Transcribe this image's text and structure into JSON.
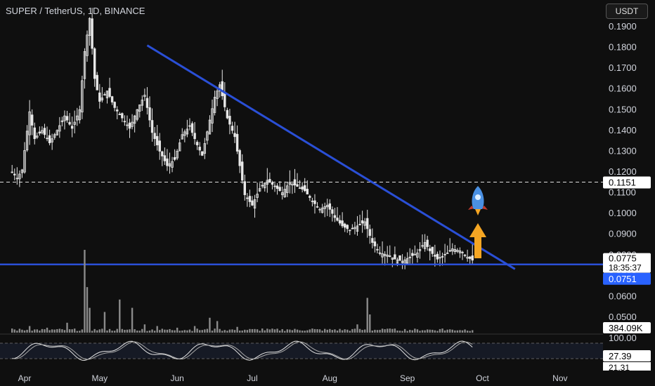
{
  "header": {
    "symbol_title": "SUPER / TetherUS, 1D, BINANCE",
    "currency_button": "USDT"
  },
  "colors": {
    "background": "#0f0f0f",
    "candles": "#e8e8e8",
    "trendline": "#2a4fd6",
    "support": "#2a4fd6",
    "price_tag": "#2962ff",
    "volume": "#8a8a8a",
    "stoch_line": "#e6e6e6"
  },
  "chart_data": {
    "type": "candlestick",
    "pair": "SUPER/USDT",
    "timeframe": "1D",
    "exchange": "BINANCE",
    "y_axis": {
      "ticks": [
        "0.1900",
        "0.1800",
        "0.1700",
        "0.1600",
        "0.1500",
        "0.1400",
        "0.1300",
        "0.1200",
        "0.1100",
        "0.1000",
        "0.0900",
        "0.0800",
        "0.0700",
        "0.0600",
        "0.0500"
      ],
      "range": [
        0.047,
        0.197
      ]
    },
    "x_axis": {
      "ticks": [
        "Apr",
        "May",
        "Jun",
        "Jul",
        "Aug",
        "Sep",
        "Oct",
        "Nov"
      ]
    },
    "price_points": [
      [
        "Mar 27",
        0.12
      ],
      [
        "Mar 29",
        0.117
      ],
      [
        "Mar 31",
        0.121
      ],
      [
        "Apr 3",
        0.149
      ],
      [
        "Apr 5",
        0.136
      ],
      [
        "Apr 8",
        0.14
      ],
      [
        "Apr 11",
        0.134
      ],
      [
        "Apr 14",
        0.14
      ],
      [
        "Apr 17",
        0.147
      ],
      [
        "Apr 20",
        0.141
      ],
      [
        "Apr 23",
        0.15
      ],
      [
        "Apr 25",
        0.178
      ],
      [
        "Apr 27",
        0.194
      ],
      [
        "Apr 29",
        0.165
      ],
      [
        "May 1",
        0.154
      ],
      [
        "May 4",
        0.159
      ],
      [
        "May 7",
        0.151
      ],
      [
        "May 10",
        0.146
      ],
      [
        "May 13",
        0.141
      ],
      [
        "May 16",
        0.15
      ],
      [
        "May 19",
        0.157
      ],
      [
        "May 22",
        0.139
      ],
      [
        "May 25",
        0.13
      ],
      [
        "May 28",
        0.123
      ],
      [
        "May 31",
        0.126
      ],
      [
        "Jun 3",
        0.138
      ],
      [
        "Jun 6",
        0.142
      ],
      [
        "Jun 9",
        0.133
      ],
      [
        "Jun 11",
        0.128
      ],
      [
        "Jun 14",
        0.145
      ],
      [
        "Jun 16",
        0.156
      ],
      [
        "Jun 18",
        0.162
      ],
      [
        "Jun 21",
        0.146
      ],
      [
        "Jun 24",
        0.137
      ],
      [
        "Jun 26",
        0.123
      ],
      [
        "Jun 28",
        0.109
      ],
      [
        "Jul 1",
        0.104
      ],
      [
        "Jul 4",
        0.112
      ],
      [
        "Jul 7",
        0.116
      ],
      [
        "Jul 10",
        0.113
      ],
      [
        "Jul 13",
        0.11
      ],
      [
        "Jul 16",
        0.115
      ],
      [
        "Jul 19",
        0.113
      ],
      [
        "Jul 22",
        0.111
      ],
      [
        "Jul 25",
        0.106
      ],
      [
        "Jul 28",
        0.102
      ],
      [
        "Jul 31",
        0.104
      ],
      [
        "Aug 3",
        0.098
      ],
      [
        "Aug 6",
        0.094
      ],
      [
        "Aug 9",
        0.092
      ],
      [
        "Aug 12",
        0.094
      ],
      [
        "Aug 15",
        0.096
      ],
      [
        "Aug 18",
        0.086
      ],
      [
        "Aug 21",
        0.081
      ],
      [
        "Aug 24",
        0.08
      ],
      [
        "Aug 27",
        0.078
      ],
      [
        "Aug 30",
        0.077
      ],
      [
        "Sep 2",
        0.079
      ],
      [
        "Sep 5",
        0.081
      ],
      [
        "Sep 8",
        0.086
      ],
      [
        "Sep 10",
        0.082
      ],
      [
        "Sep 13",
        0.078
      ],
      [
        "Sep 16",
        0.08
      ],
      [
        "Sep 19",
        0.083
      ],
      [
        "Sep 22",
        0.082
      ],
      [
        "Sep 25",
        0.079
      ],
      [
        "Sep 27",
        0.0775
      ]
    ],
    "volume_points": [
      [
        "Mar 27",
        0.05
      ],
      [
        "Apr 3",
        0.08
      ],
      [
        "Apr 10",
        0.06
      ],
      [
        "Apr 18",
        0.12
      ],
      [
        "Apr 25",
        1.0
      ],
      [
        "Apr 26",
        0.55
      ],
      [
        "Apr 27",
        0.3
      ],
      [
        "May 3",
        0.25
      ],
      [
        "May 9",
        0.4
      ],
      [
        "May 14",
        0.3
      ],
      [
        "May 19",
        0.1
      ],
      [
        "May 24",
        0.08
      ],
      [
        "Jun 1",
        0.06
      ],
      [
        "Jun 8",
        0.08
      ],
      [
        "Jun 14",
        0.18
      ],
      [
        "Jun 17",
        0.14
      ],
      [
        "Jun 25",
        0.07
      ],
      [
        "Jul 5",
        0.05
      ],
      [
        "Jul 15",
        0.04
      ],
      [
        "Jul 25",
        0.05
      ],
      [
        "Aug 3",
        0.04
      ],
      [
        "Aug 12",
        0.1
      ],
      [
        "Aug 16",
        0.42
      ],
      [
        "Aug 17",
        0.22
      ],
      [
        "Aug 25",
        0.05
      ],
      [
        "Sep 5",
        0.04
      ],
      [
        "Sep 15",
        0.05
      ],
      [
        "Sep 27",
        0.03
      ]
    ],
    "stoch_levels": [
      "100.00",
      "27.39",
      "21.31"
    ],
    "annotations": {
      "trendline": [
        [
          "May 20",
          0.181
        ],
        [
          "Oct 14",
          0.0732
        ]
      ],
      "support_level": 0.0751,
      "dashed_level": 0.1151,
      "price_labels": {
        "dashed_level": "0.1151",
        "last_price": "0.0775",
        "countdown": "18:35:37",
        "support": "0.0751",
        "volume": "384.09K"
      },
      "icons": [
        "rocket-icon",
        "arrow-up-icon"
      ]
    }
  }
}
